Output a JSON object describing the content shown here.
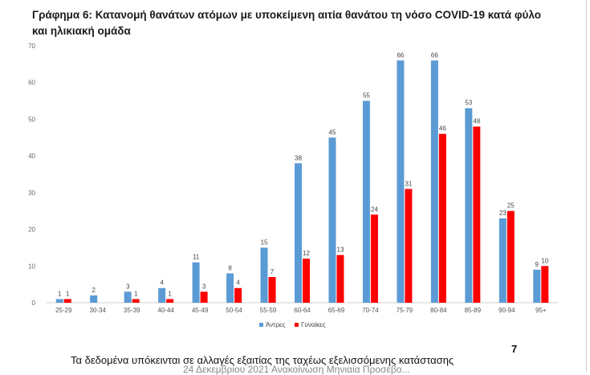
{
  "header": {
    "title": "Γράφημα 6: Κατανομή θανάτων ατόμων με υποκείμενη αιτία θανάτου τη νόσο COVID-19 κατά φύλο και ηλικιακή ομάδα"
  },
  "footer": {
    "note": "Τα δεδομένα υπόκεινται σε αλλαγές εξαιτίας της ταχέως εξελισσόμενης κατάστασης",
    "sub": "24 Δεκεμβρίου 2021 Ανακοίνωση Μηνιαία Προσέβο...",
    "page_number": "7"
  },
  "chart_data": {
    "type": "bar",
    "title": "",
    "xlabel": "",
    "ylabel": "",
    "ylim": [
      0,
      70
    ],
    "yticks": [
      0,
      10,
      20,
      30,
      40,
      50,
      60,
      70
    ],
    "grid": false,
    "legend_position": "bottom-center",
    "categories": [
      "25-29",
      "30-34",
      "35-39",
      "40-44",
      "45-49",
      "50-54",
      "55-59",
      "60-64",
      "65-69",
      "70-74",
      "75-79",
      "80-84",
      "85-89",
      "90-94",
      "95+"
    ],
    "series": [
      {
        "name": "Άντρες",
        "color": "#5B9BD5",
        "values": [
          1,
          2,
          3,
          4,
          11,
          8,
          15,
          38,
          45,
          55,
          66,
          66,
          53,
          23,
          9
        ]
      },
      {
        "name": "Γυναίκες",
        "color": "#FF0000",
        "values": [
          1,
          null,
          1,
          1,
          3,
          4,
          7,
          12,
          13,
          24,
          31,
          46,
          48,
          25,
          10
        ]
      }
    ]
  }
}
